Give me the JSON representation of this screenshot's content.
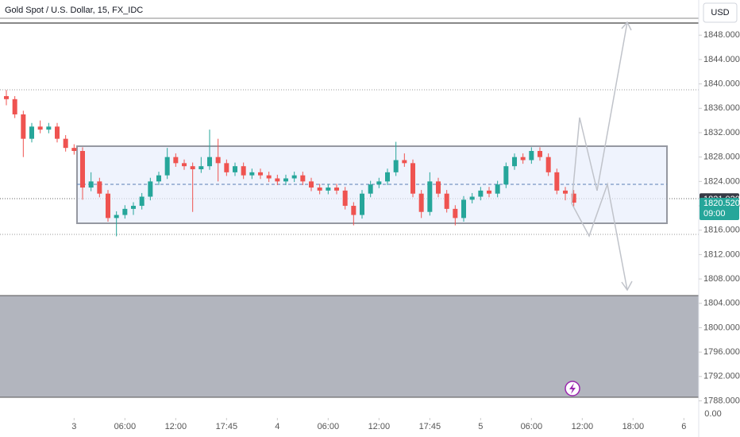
{
  "chart_data": {
    "type": "candlestick",
    "title": "Gold Spot / U.S. Dollar, 15, FX_IDC",
    "currency": "USD",
    "up_color": "#26a69a",
    "down_color": "#ef5350",
    "xlim": [
      -35,
      295
    ],
    "ylim": [
      1785.2,
      1850.9
    ],
    "yticks": [
      {
        "value": 1848,
        "label": "1848.000"
      },
      {
        "value": 1844,
        "label": "1844.000"
      },
      {
        "value": 1840,
        "label": "1840.000"
      },
      {
        "value": 1836,
        "label": "1836.000"
      },
      {
        "value": 1832,
        "label": "1832.000"
      },
      {
        "value": 1828,
        "label": "1828.000"
      },
      {
        "value": 1824,
        "label": "1824.000"
      },
      {
        "value": 1820,
        "label": "1820.000"
      },
      {
        "value": 1816,
        "label": "1816.000"
      },
      {
        "value": 1812,
        "label": "1812.000"
      },
      {
        "value": 1808,
        "label": "1808.000"
      },
      {
        "value": 1804,
        "label": "1804.000"
      },
      {
        "value": 1800,
        "label": "1800.000"
      },
      {
        "value": 1796,
        "label": "1796.000"
      },
      {
        "value": 1792,
        "label": "1792.000"
      },
      {
        "value": 1788,
        "label": "1788.000"
      }
    ],
    "xticks": [
      {
        "value": 0,
        "label": "3"
      },
      {
        "value": 24,
        "label": "06:00"
      },
      {
        "value": 48,
        "label": "12:00"
      },
      {
        "value": 72,
        "label": "17:45"
      },
      {
        "value": 96,
        "label": "4"
      },
      {
        "value": 120,
        "label": "06:00"
      },
      {
        "value": 144,
        "label": "12:00"
      },
      {
        "value": 168,
        "label": "17:45"
      },
      {
        "value": 192,
        "label": "5"
      },
      {
        "value": 216,
        "label": "06:00"
      },
      {
        "value": 240,
        "label": "12:00"
      },
      {
        "value": 264,
        "label": "18:00"
      },
      {
        "value": 288,
        "label": "6"
      }
    ],
    "price_labels": [
      {
        "value": 1821.02,
        "label": "1821.020"
      },
      {
        "value": 1820.52,
        "label": "1820.520",
        "countdown": "09:00"
      }
    ],
    "lower_pane_label": "0.00",
    "series": [
      {
        "x": [
          -32,
          -28,
          -24,
          -20,
          -16,
          -12,
          -8,
          -4,
          0,
          4,
          8,
          12,
          16,
          20,
          24,
          28,
          32,
          36,
          40,
          44,
          48,
          52,
          56,
          60,
          64,
          68,
          72,
          76,
          80,
          84,
          88,
          92,
          96,
          100,
          104,
          108,
          112,
          116,
          120,
          124,
          128,
          132,
          136,
          140,
          144,
          148,
          152,
          156,
          160,
          164,
          168,
          172,
          176,
          180,
          184,
          188,
          192,
          196,
          200,
          204,
          208,
          212,
          216,
          220,
          224,
          228,
          232,
          236
        ],
        "open": [
          1838,
          1837.5,
          1835,
          1831,
          1833,
          1832.5,
          1833,
          1831,
          1829.5,
          1829,
          1823,
          1824,
          1822,
          1818,
          1818.5,
          1819.5,
          1820,
          1821.5,
          1824,
          1825,
          1828,
          1827,
          1826.5,
          1826,
          1826.5,
          1828,
          1827,
          1825.5,
          1826.5,
          1825,
          1825.5,
          1825,
          1824.5,
          1824,
          1824.5,
          1825,
          1824,
          1823,
          1822.5,
          1823,
          1822.5,
          1820,
          1818.5,
          1822,
          1823.5,
          1824,
          1825.5,
          1827.5,
          1827,
          1822,
          1819,
          1824,
          1822,
          1819.5,
          1818,
          1821,
          1821.5,
          1822.5,
          1822,
          1823.5,
          1826.5,
          1828,
          1827.5,
          1829,
          1828,
          1825.5,
          1822.5,
          1822
        ],
        "high": [
          1839,
          1838,
          1835.6,
          1833.6,
          1834,
          1833.6,
          1833.6,
          1831.6,
          1830.1,
          1829.6,
          1825.5,
          1824.6,
          1822.6,
          1819.1,
          1820.1,
          1820.6,
          1822.1,
          1824.6,
          1825.6,
          1829.5,
          1828.6,
          1827.6,
          1827.1,
          1828,
          1832.5,
          1831,
          1827.6,
          1827.1,
          1827.1,
          1826.1,
          1826.1,
          1825.6,
          1825.1,
          1825.1,
          1825.6,
          1825.6,
          1824.6,
          1823.6,
          1823.6,
          1823.6,
          1823.1,
          1820.6,
          1822.6,
          1824.1,
          1824.6,
          1826.1,
          1830.5,
          1828.6,
          1827.6,
          1822.6,
          1825.5,
          1824.6,
          1822.6,
          1820.1,
          1821.6,
          1822.1,
          1823.1,
          1823.1,
          1824.1,
          1827.1,
          1828.6,
          1828.6,
          1829.6,
          1829.6,
          1828.6,
          1826.1,
          1823.1,
          1822.6
        ],
        "low": [
          1836.5,
          1834.4,
          1828,
          1830.4,
          1831.9,
          1831.9,
          1830.4,
          1828.9,
          1828.4,
          1821,
          1822.4,
          1821.4,
          1817.4,
          1815,
          1817.9,
          1818.5,
          1819.4,
          1820.9,
          1823.4,
          1824.4,
          1826.4,
          1825.9,
          1819,
          1825.4,
          1825.9,
          1824,
          1824.9,
          1824.9,
          1824.4,
          1824.4,
          1824.4,
          1823.9,
          1823.4,
          1823.4,
          1823.9,
          1823.4,
          1822.4,
          1821.9,
          1821.9,
          1821.9,
          1819.4,
          1816.8,
          1817.9,
          1821.4,
          1822.9,
          1823.4,
          1824.9,
          1826.4,
          1821.4,
          1818,
          1818.4,
          1821.4,
          1818.9,
          1816.8,
          1817.4,
          1820.4,
          1820.9,
          1821.4,
          1821.4,
          1822.9,
          1825.9,
          1826.9,
          1826.9,
          1827.4,
          1824.9,
          1821.9,
          1820.9,
          1819.9
        ],
        "close": [
          1837.5,
          1835,
          1831,
          1833,
          1832.5,
          1833,
          1831,
          1829.5,
          1829,
          1823,
          1824,
          1822,
          1818,
          1818.5,
          1819.5,
          1820,
          1821.5,
          1824,
          1825,
          1828,
          1827,
          1826.5,
          1826,
          1826.5,
          1828,
          1827,
          1825.5,
          1826.5,
          1825,
          1825.5,
          1825,
          1824.5,
          1824,
          1824.5,
          1825,
          1824,
          1823,
          1822.5,
          1823,
          1822.5,
          1820,
          1818.5,
          1822,
          1823.5,
          1824,
          1825.5,
          1827.5,
          1827,
          1822,
          1819,
          1824,
          1822,
          1819.5,
          1818,
          1821,
          1821.5,
          1822.5,
          1822,
          1823.5,
          1826.5,
          1828,
          1827.5,
          1829,
          1828,
          1825.5,
          1822.5,
          1822,
          1820.52
        ]
      }
    ]
  }
}
